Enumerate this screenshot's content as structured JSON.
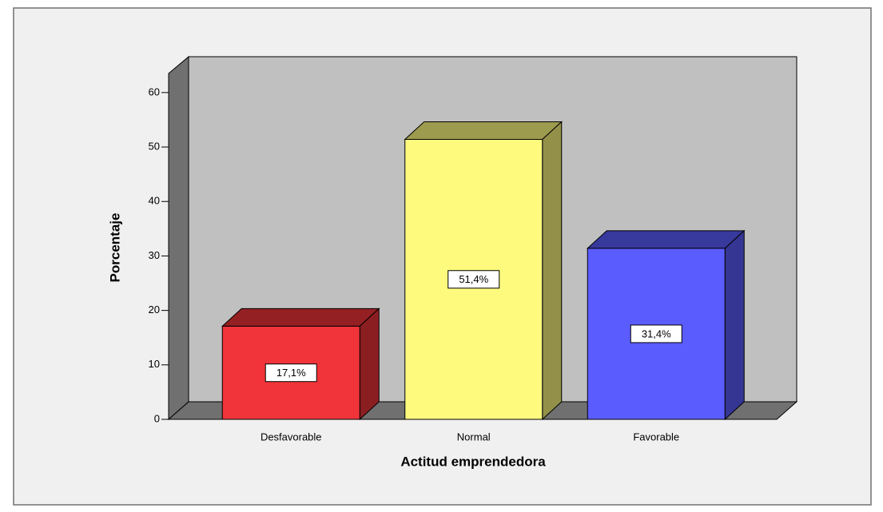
{
  "chart_data": {
    "type": "bar3d",
    "x_label": "Actitud emprendedora",
    "y_label": "Porcentaje",
    "categories": [
      "Desfavorable",
      "Normal",
      "Favorable"
    ],
    "values": [
      17.1,
      51.4,
      31.4
    ],
    "value_labels": [
      "17,1%",
      "51,4%",
      "31,4%"
    ],
    "colors": [
      "#f03439",
      "#fdfa7e",
      "#5b5cfe"
    ],
    "ylim": [
      0,
      63.5
    ],
    "yticks": [
      0,
      10,
      20,
      30,
      40,
      50,
      60
    ]
  }
}
